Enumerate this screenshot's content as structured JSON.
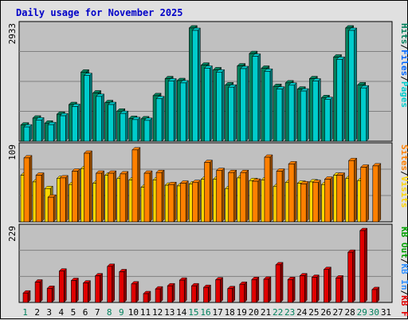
{
  "title": "Daily usage for November 2025",
  "colors": {
    "pages": "#00cccc",
    "files": "#0066ff",
    "hits": "#00805c",
    "visits": "#ffd700",
    "sites": "#ff8000",
    "kbin": "#2f8fff",
    "kbout": "#00a000",
    "kbf": "#e00000",
    "weekend": "#00805c",
    "weekday": "#000000",
    "plot_bg": "#c0c0c0",
    "grid": "#808080"
  },
  "chart_data": [
    {
      "type": "bar",
      "panel": "hits",
      "ymax_label": "2933",
      "ymax": 2933,
      "legend": [
        {
          "key": "pages",
          "text": "Pages"
        },
        {
          "key": "files",
          "text": "Files"
        },
        {
          "key": "hits",
          "text": "Hits"
        }
      ],
      "series": [
        {
          "name": "Hits",
          "values": [
            420,
            600,
            470,
            700,
            950,
            1790,
            1250,
            1000,
            780,
            590,
            580,
            1180,
            1620,
            1570,
            2933,
            1970,
            1850,
            1460,
            1950,
            2270,
            1890,
            1420,
            1510,
            1350,
            1620,
            1130,
            2180,
            2933,
            1460,
            0
          ]
        },
        {
          "name": "Files",
          "values": [
            370,
            550,
            430,
            660,
            900,
            1700,
            1160,
            950,
            720,
            560,
            540,
            1100,
            1560,
            1510,
            2870,
            1890,
            1790,
            1400,
            1880,
            2200,
            1810,
            1350,
            1450,
            1300,
            1560,
            1080,
            2120,
            2870,
            1380,
            0
          ]
        },
        {
          "name": "Pages",
          "values": [
            370,
            550,
            430,
            660,
            900,
            1700,
            1160,
            950,
            720,
            560,
            540,
            1100,
            1560,
            1510,
            2870,
            1890,
            1790,
            1400,
            1880,
            2200,
            1810,
            1350,
            1450,
            1300,
            1560,
            1080,
            2120,
            2870,
            1380,
            0
          ]
        }
      ]
    },
    {
      "type": "bar",
      "panel": "visits",
      "ymax_label": "109",
      "ymax": 109,
      "legend": [
        {
          "key": "visits",
          "text": "Visits"
        },
        {
          "key": "sites",
          "text": "Sites"
        }
      ],
      "series": [
        {
          "name": "Visits",
          "values": [
            70,
            60,
            50,
            65,
            56,
            80,
            58,
            70,
            65,
            63,
            52,
            63,
            55,
            54,
            57,
            64,
            64,
            50,
            66,
            62,
            63,
            53,
            59,
            58,
            60,
            56,
            70,
            65,
            62,
            0
          ]
        },
        {
          "name": "Sites",
          "values": [
            96,
            70,
            37,
            66,
            76,
            103,
            73,
            73,
            72,
            108,
            73,
            74,
            56,
            58,
            59,
            89,
            77,
            74,
            74,
            61,
            97,
            76,
            87,
            57,
            59,
            64,
            70,
            92,
            82,
            84
          ]
        }
      ]
    },
    {
      "type": "bar",
      "panel": "kbf",
      "ymax_label": "229",
      "ymax": 229,
      "legend": [
        {
          "key": "kbf",
          "text": "KB F"
        },
        {
          "key": "kbin",
          "text": "KB In"
        },
        {
          "key": "kbout",
          "text": "KB Out"
        }
      ],
      "series": [
        {
          "name": "KB F",
          "values": [
            30,
            65,
            45,
            100,
            70,
            62,
            85,
            115,
            98,
            59,
            28,
            43,
            53,
            71,
            53,
            48,
            72,
            44,
            58,
            73,
            74,
            120,
            73,
            85,
            80,
            105,
            78,
            160,
            229,
            41
          ]
        }
      ]
    }
  ],
  "days": [
    "1",
    "2",
    "3",
    "4",
    "5",
    "6",
    "7",
    "8",
    "9",
    "10",
    "11",
    "12",
    "13",
    "14",
    "15",
    "16",
    "17",
    "18",
    "19",
    "20",
    "21",
    "22",
    "23",
    "24",
    "25",
    "26",
    "27",
    "28",
    "29",
    "30",
    "31"
  ],
  "weekend_days": [
    1,
    8,
    9,
    15,
    16,
    22,
    23,
    29,
    30
  ]
}
